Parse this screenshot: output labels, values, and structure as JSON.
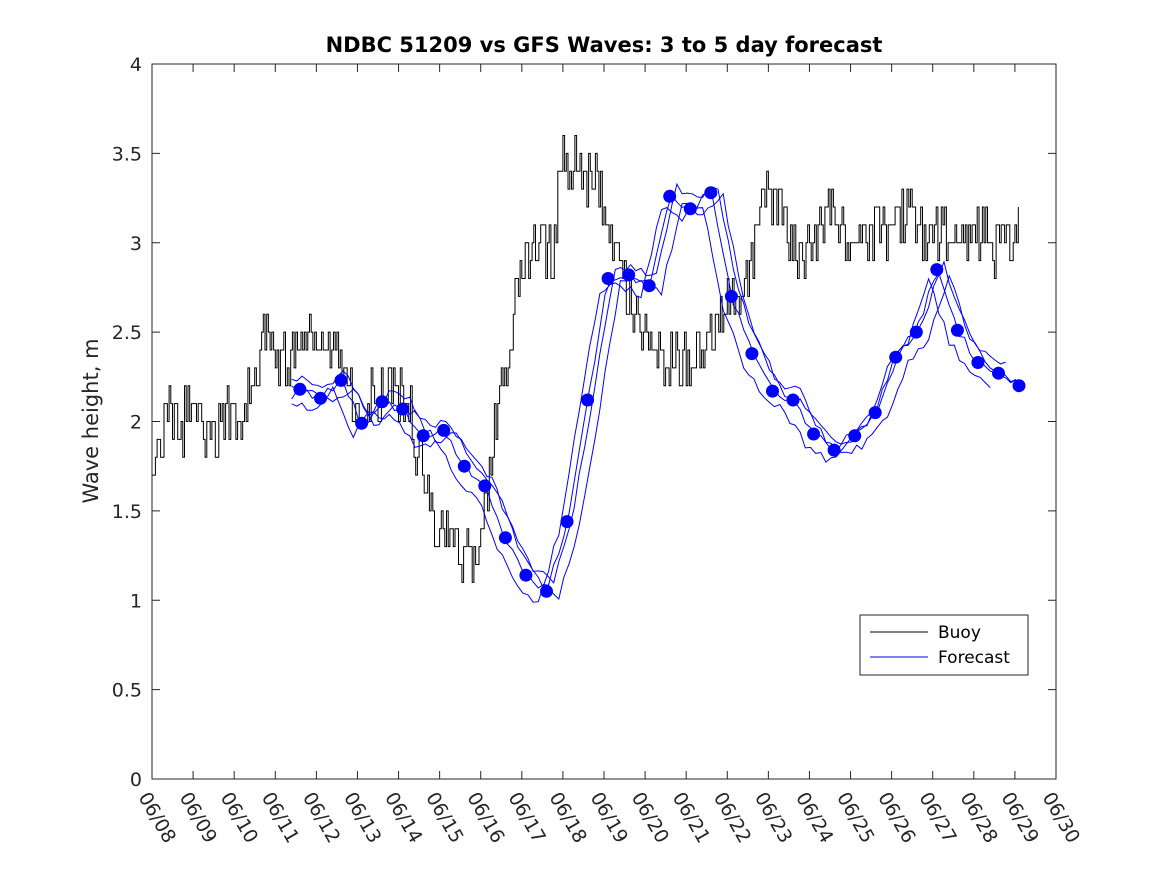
{
  "chart_data": {
    "type": "line",
    "title": "NDBC 51209 vs GFS Waves: 3 to 5 day forecast",
    "xlabel": "",
    "ylabel": "Wave height, m",
    "ylim": [
      0,
      4
    ],
    "yticks": [
      0,
      0.5,
      1,
      1.5,
      2,
      2.5,
      3,
      3.5,
      4
    ],
    "ytick_labels": [
      "0",
      "0.5",
      "1",
      "1.5",
      "2",
      "2.5",
      "3",
      "3.5",
      "4"
    ],
    "xlim": [
      "06/08",
      "06/30"
    ],
    "xtick_labels": [
      "06/08",
      "06/09",
      "06/10",
      "06/11",
      "06/12",
      "06/13",
      "06/14",
      "06/15",
      "06/16",
      "06/17",
      "06/18",
      "06/19",
      "06/20",
      "06/21",
      "06/22",
      "06/23",
      "06/24",
      "06/25",
      "06/26",
      "06/27",
      "06/28",
      "06/29",
      "06/30"
    ],
    "grid": false,
    "legend": {
      "position": "lower-right",
      "entries": [
        "Buoy",
        "Forecast"
      ]
    },
    "colors": {
      "buoy": "#000000",
      "forecast": "#0000ff"
    },
    "series": [
      {
        "name": "Buoy",
        "x_days": [
          0.0,
          0.25,
          0.5,
          0.75,
          1.0,
          1.25,
          1.5,
          1.75,
          2.0,
          2.25,
          2.5,
          2.75,
          2.85,
          3.0,
          3.25,
          3.5,
          3.75,
          4.0,
          4.25,
          4.5,
          4.75,
          5.0,
          5.25,
          5.5,
          5.75,
          6.0,
          6.25,
          6.5,
          6.75,
          7.0,
          7.25,
          7.5,
          7.75,
          8.0,
          8.25,
          8.5,
          8.75,
          9.0,
          9.25,
          9.5,
          9.75,
          10.0,
          10.25,
          10.5,
          10.75,
          11.0,
          11.25,
          11.5,
          11.75,
          12.0,
          12.25,
          12.5,
          12.75,
          13.0,
          13.25,
          13.5,
          13.75,
          14.0,
          14.25,
          14.5,
          14.75,
          15.0,
          15.25,
          15.5,
          15.75,
          16.0,
          16.25,
          16.5,
          16.75,
          17.0,
          17.25,
          17.5,
          17.75,
          18.0,
          18.25,
          18.5,
          18.75,
          19.0,
          19.25,
          19.5,
          19.75,
          20.0,
          20.25,
          20.5,
          20.75,
          21.0,
          21.1
        ],
        "values": [
          1.7,
          2.0,
          2.05,
          2.0,
          2.15,
          1.95,
          1.9,
          2.0,
          2.0,
          2.1,
          2.2,
          2.5,
          2.6,
          2.4,
          2.3,
          2.4,
          2.45,
          2.35,
          2.4,
          2.3,
          2.2,
          2.0,
          2.15,
          2.1,
          2.2,
          2.15,
          2.05,
          1.8,
          1.55,
          1.4,
          1.3,
          1.3,
          1.25,
          1.3,
          1.8,
          2.2,
          2.5,
          2.85,
          2.95,
          3.0,
          2.9,
          3.5,
          3.45,
          3.35,
          3.4,
          3.2,
          2.9,
          2.75,
          2.6,
          2.45,
          2.4,
          2.35,
          2.4,
          2.3,
          2.35,
          2.45,
          2.55,
          2.7,
          2.6,
          2.8,
          3.1,
          3.3,
          3.2,
          3.05,
          2.85,
          3.0,
          3.15,
          3.2,
          3.1,
          3.05,
          3.0,
          3.05,
          3.1,
          3.05,
          3.15,
          3.2,
          3.05,
          3.0,
          3.1,
          3.0,
          3.0,
          3.05,
          3.1,
          2.95,
          3.0,
          3.05,
          3.2
        ]
      },
      {
        "name": "Forecast",
        "x_days": [
          3.6,
          4.1,
          4.6,
          5.1,
          5.6,
          6.1,
          6.6,
          7.1,
          7.6,
          8.1,
          8.6,
          9.1,
          9.6,
          10.1,
          10.6,
          11.1,
          11.6,
          12.1,
          12.6,
          13.1,
          13.6,
          14.1,
          14.6,
          15.1,
          15.6,
          16.1,
          16.6,
          17.1,
          17.6,
          18.1,
          18.6,
          19.1,
          19.6,
          20.1,
          20.6,
          21.1
        ],
        "values": [
          2.18,
          2.13,
          2.23,
          1.99,
          2.11,
          2.07,
          1.92,
          1.95,
          1.75,
          1.64,
          1.35,
          1.14,
          1.05,
          1.44,
          2.12,
          2.8,
          2.82,
          2.76,
          3.26,
          3.19,
          3.28,
          2.7,
          2.38,
          2.17,
          2.12,
          1.93,
          1.84,
          1.92,
          2.05,
          2.36,
          2.5,
          2.85,
          2.51,
          2.33,
          2.27,
          2.2
        ]
      }
    ]
  }
}
